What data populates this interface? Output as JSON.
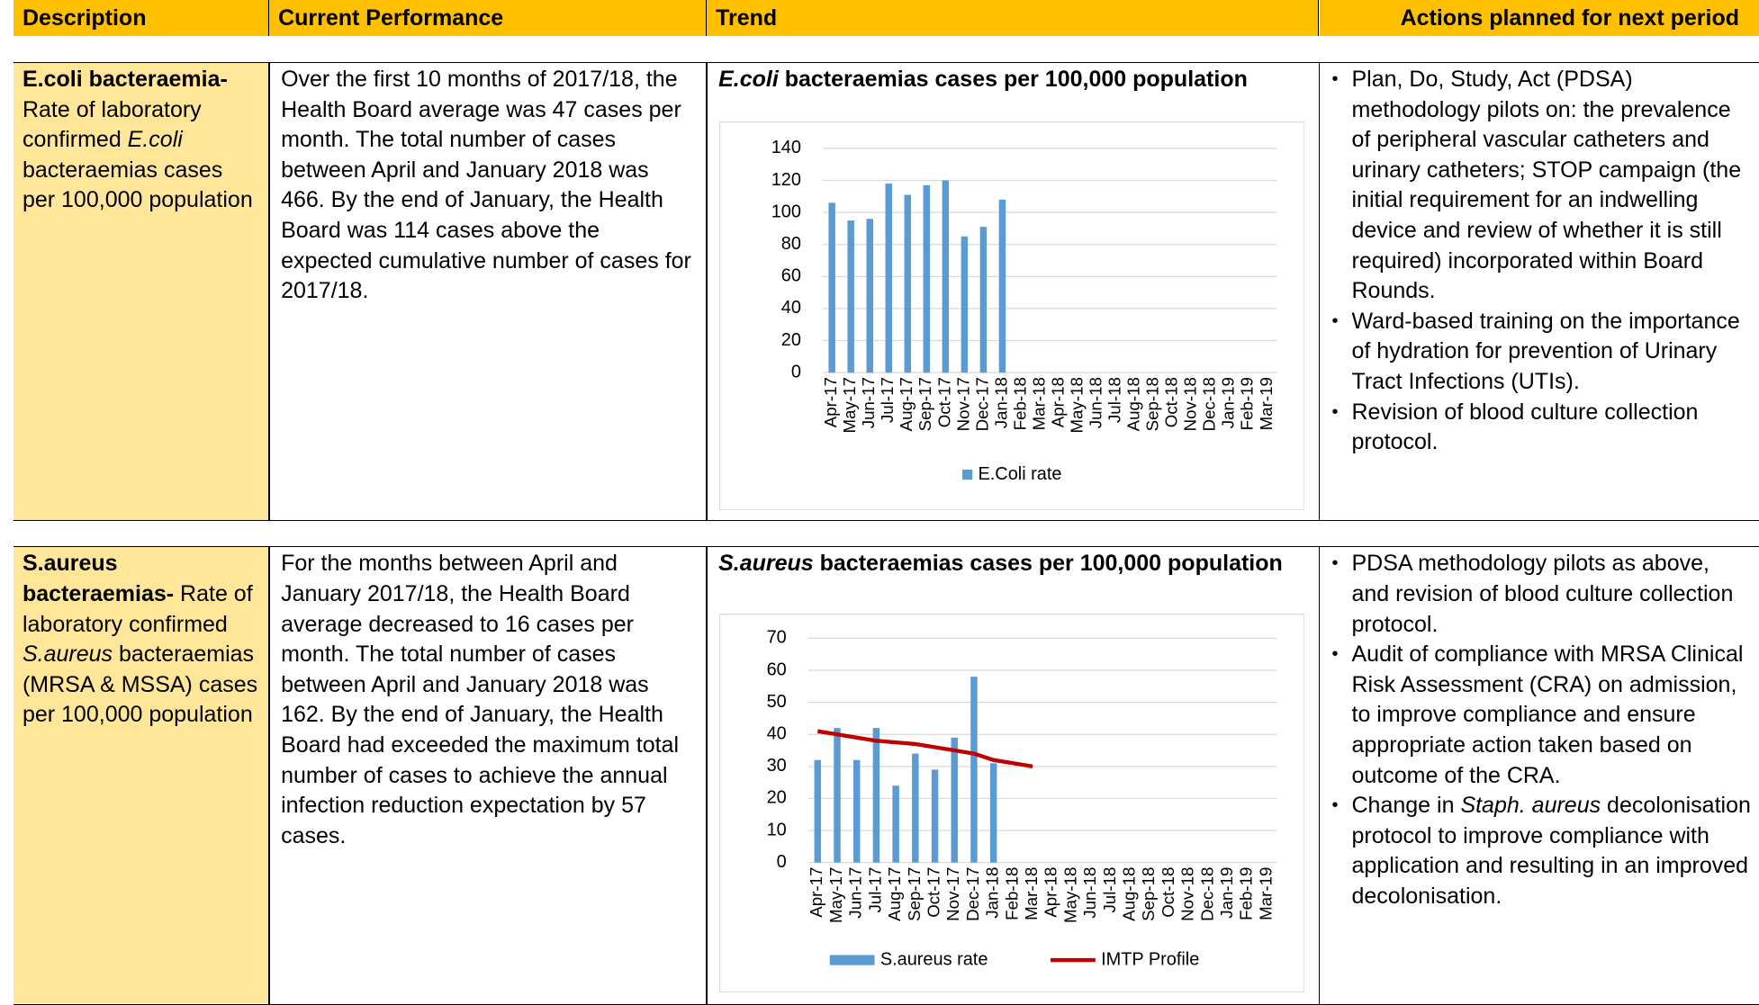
{
  "header": {
    "columns": [
      "Description",
      "Current Performance",
      "Trend",
      "Actions planned for next period"
    ]
  },
  "rows": [
    {
      "description": [
        {
          "text": "E.coli bacteraemia-",
          "bold": true
        },
        {
          "text": " Rate of laboratory confirmed "
        },
        {
          "text": "E.coli",
          "italic": true
        },
        {
          "text": " bacteraemias cases per 100,000 population"
        }
      ],
      "performance": "Over the first 10 months of 2017/18, the Health Board average was 47 cases per month. The total number of cases between April and January 2018 was 466. By the end of January, the Health Board was 114 cases above the expected cumulative number of cases for 2017/18.",
      "trend": {
        "type": "bar",
        "title": [
          {
            "text": "E.coli",
            "italic": true
          },
          {
            "text": " bacteraemias cases per 100,000 population"
          }
        ],
        "categories": [
          "Apr-17",
          "May-17",
          "Jun-17",
          "Jul-17",
          "Aug-17",
          "Sep-17",
          "Oct-17",
          "Nov-17",
          "Dec-17",
          "Jan-18",
          "Feb-18",
          "Mar-18",
          "Apr-18",
          "May-18",
          "Jun-18",
          "Jul-18",
          "Aug-18",
          "Sep-18",
          "Oct-18",
          "Nov-18",
          "Dec-18",
          "Jan-19",
          "Feb-19",
          "Mar-19"
        ],
        "series": [
          {
            "name": "E.Coli rate",
            "type": "bar",
            "color": "#5b9bd5",
            "values": [
              106,
              95,
              96,
              118,
              111,
              117,
              120,
              85,
              91,
              108,
              null,
              null,
              null,
              null,
              null,
              null,
              null,
              null,
              null,
              null,
              null,
              null,
              null,
              null
            ]
          }
        ],
        "ylim": [
          0,
          140
        ],
        "yticks": [
          0,
          20,
          40,
          60,
          80,
          100,
          120,
          140
        ],
        "grid": true,
        "legend": "bottom"
      },
      "actions": [
        [
          {
            "text": "Plan, Do, Study, Act (PDSA) methodology pilots on: the prevalence of peripheral vascular catheters and urinary catheters; STOP campaign (the initial requirement for an indwelling device and review of whether it is still required) incorporated within Board Rounds."
          }
        ],
        [
          {
            "text": "Ward-based training on the importance of hydration for prevention of Urinary Tract Infections (UTIs)."
          }
        ],
        [
          {
            "text": "Revision of blood culture collection protocol."
          }
        ]
      ]
    },
    {
      "description": [
        {
          "text": "S.aureus bacteraemias-",
          "bold": true
        },
        {
          "text": " Rate of laboratory confirmed "
        },
        {
          "text": "S.aureus",
          "italic": true
        },
        {
          "text": " bacteraemias (MRSA & MSSA) cases per 100,000 population"
        }
      ],
      "performance": "For the months between April and January 2017/18, the Health Board average decreased to 16 cases per month. The total number of cases between April and January 2018 was 162. By the end of January, the Health Board had exceeded the maximum total number of cases to achieve the annual infection reduction expectation by 57 cases.",
      "trend": {
        "type": "bar",
        "title": [
          {
            "text": "S.aureus",
            "italic": true
          },
          {
            "text": " bacteraemias cases per 100,000 population"
          }
        ],
        "categories": [
          "Apr-17",
          "May-17",
          "Jun-17",
          "Jul-17",
          "Aug-17",
          "Sep-17",
          "Oct-17",
          "Nov-17",
          "Dec-17",
          "Jan-18",
          "Feb-18",
          "Mar-18",
          "Apr-18",
          "May-18",
          "Jun-18",
          "Jul-18",
          "Aug-18",
          "Sep-18",
          "Oct-18",
          "Nov-18",
          "Dec-18",
          "Jan-19",
          "Feb-19",
          "Mar-19"
        ],
        "series": [
          {
            "name": "S.aureus rate",
            "type": "bar",
            "color": "#5b9bd5",
            "values": [
              32,
              42,
              32,
              42,
              24,
              34,
              29,
              39,
              58,
              31,
              null,
              null,
              null,
              null,
              null,
              null,
              null,
              null,
              null,
              null,
              null,
              null,
              null,
              null
            ]
          },
          {
            "name": "IMTP Profile",
            "type": "line",
            "color": "#c00000",
            "values": [
              41,
              40,
              39,
              38,
              37.5,
              37,
              36,
              35,
              34,
              32,
              31,
              30,
              null,
              null,
              null,
              null,
              null,
              null,
              null,
              null,
              null,
              null,
              null,
              null
            ]
          }
        ],
        "ylim": [
          0,
          70
        ],
        "yticks": [
          0,
          10,
          20,
          30,
          40,
          50,
          60,
          70
        ],
        "grid": true,
        "legend": "bottom"
      },
      "actions": [
        [
          {
            "text": "PDSA methodology pilots as above, and revision of blood culture collection protocol."
          }
        ],
        [
          {
            "text": "Audit of compliance with MRSA Clinical Risk Assessment (CRA) on admission, to improve compliance and ensure appropriate action taken based on outcome of the CRA."
          }
        ],
        [
          {
            "text": "Change in "
          },
          {
            "text": "Staph. aureus",
            "italic": true
          },
          {
            "text": " decolonisation protocol to improve compliance with application and resulting in an improved decolonisation."
          }
        ]
      ]
    }
  ]
}
